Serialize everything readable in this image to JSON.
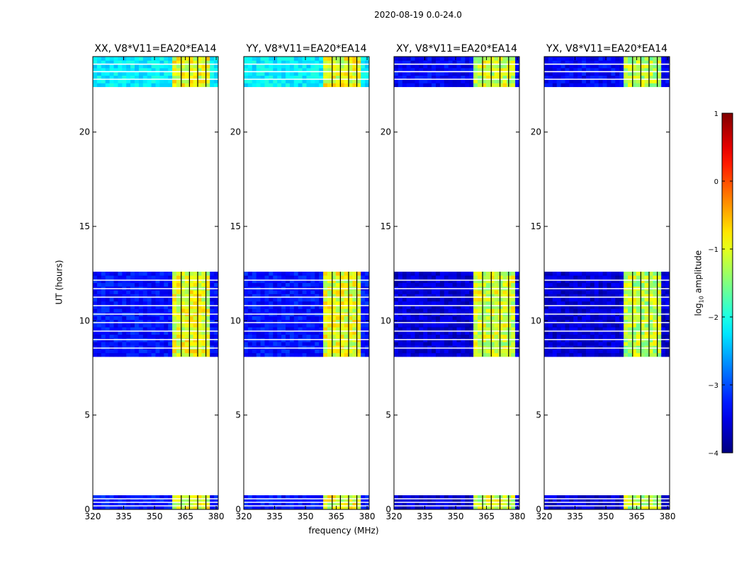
{
  "figure": {
    "suptitle": "2020-08-19 0.0-24.0",
    "xlabel": "frequency (MHz)",
    "ylabel": "UT (hours)",
    "colorbar_label_main": "log",
    "colorbar_label_sub": "10",
    "colorbar_label_tail": " amplitude"
  },
  "colors": {
    "jet_low": "#00007f",
    "jet_high": "#7f0000",
    "axes_frame": "#000000"
  },
  "chart_data": [
    {
      "type": "heatmap",
      "title": "XX, V8*V11=EA20*EA14",
      "xlabel": "frequency (MHz)",
      "ylabel": "UT (hours)",
      "xlim": [
        320,
        381
      ],
      "ylim": [
        0,
        24
      ],
      "xticks": [
        320,
        335,
        350,
        365,
        380
      ],
      "yticks": [
        0,
        5,
        10,
        15,
        20
      ],
      "observed_time_ranges": [
        [
          0.0,
          0.75
        ],
        [
          8.1,
          12.6
        ],
        [
          22.4,
          24.0
        ]
      ],
      "bright_band_mhz": [
        359,
        377
      ],
      "background_log_amplitude": -3.3,
      "top_segment_log_amplitude": -2.2,
      "band_log_amplitude": -1.0
    },
    {
      "type": "heatmap",
      "title": "YY, V8*V11=EA20*EA14",
      "xlabel": "",
      "ylabel": "",
      "xlim": [
        320,
        381
      ],
      "ylim": [
        0,
        24
      ],
      "xticks": [
        320,
        335,
        350,
        365,
        380
      ],
      "yticks": [
        0,
        5,
        10,
        15,
        20
      ],
      "observed_time_ranges": [
        [
          0.0,
          0.75
        ],
        [
          8.1,
          12.6
        ],
        [
          22.4,
          24.0
        ]
      ],
      "bright_band_mhz": [
        359,
        377
      ],
      "background_log_amplitude": -3.3,
      "top_segment_log_amplitude": -2.2,
      "band_log_amplitude": -1.0
    },
    {
      "type": "heatmap",
      "title": "XY, V8*V11=EA20*EA14",
      "xlabel": "",
      "ylabel": "",
      "xlim": [
        320,
        381
      ],
      "ylim": [
        0,
        24
      ],
      "xticks": [
        320,
        335,
        350,
        365,
        380
      ],
      "yticks": [
        0,
        5,
        10,
        15,
        20
      ],
      "observed_time_ranges": [
        [
          0.0,
          0.75
        ],
        [
          8.1,
          12.6
        ],
        [
          22.4,
          24.0
        ]
      ],
      "bright_band_mhz": [
        359,
        378
      ],
      "background_log_amplitude": -3.6,
      "top_segment_log_amplitude": -3.4,
      "band_log_amplitude": -1.1
    },
    {
      "type": "heatmap",
      "title": "YX, V8*V11=EA20*EA14",
      "xlabel": "",
      "ylabel": "",
      "xlim": [
        320,
        381
      ],
      "ylim": [
        0,
        24
      ],
      "xticks": [
        320,
        335,
        350,
        365,
        380
      ],
      "yticks": [
        0,
        5,
        10,
        15,
        20
      ],
      "observed_time_ranges": [
        [
          0.0,
          0.75
        ],
        [
          8.1,
          12.6
        ],
        [
          22.4,
          24.0
        ]
      ],
      "bright_band_mhz": [
        359,
        377
      ],
      "background_log_amplitude": -3.6,
      "top_segment_log_amplitude": -3.4,
      "band_log_amplitude": -1.2
    }
  ],
  "colorbar": {
    "min": -4,
    "max": 1,
    "ticks": [
      "−4",
      "−3",
      "−2",
      "−1",
      "0",
      "1"
    ],
    "tick_values": [
      -4,
      -3,
      -2,
      -1,
      0,
      1
    ],
    "colormap": "jet"
  }
}
